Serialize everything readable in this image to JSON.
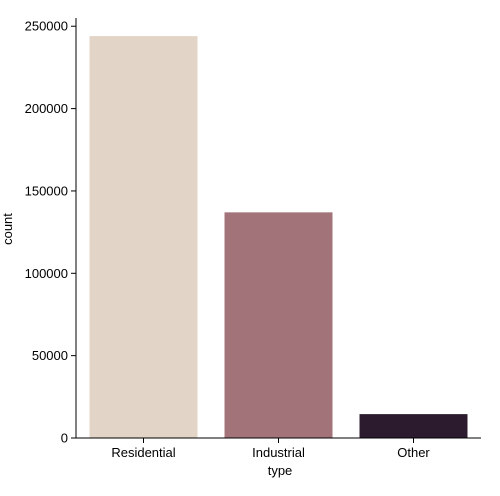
{
  "chart_data": {
    "type": "bar",
    "xlabel": "type",
    "ylabel": "count",
    "categories": [
      "Residential",
      "Industrial",
      "Other"
    ],
    "values": [
      244000,
      137000,
      14500
    ],
    "colors": [
      "#e2d4c6",
      "#a3737a",
      "#2c1b2e"
    ],
    "ylim": [
      0,
      255000
    ],
    "yticks": [
      0,
      50000,
      100000,
      150000,
      200000,
      250000
    ],
    "ytick_labels": [
      "0",
      "50000",
      "100000",
      "150000",
      "200000",
      "250000"
    ],
    "grid": false,
    "legend": "none"
  }
}
